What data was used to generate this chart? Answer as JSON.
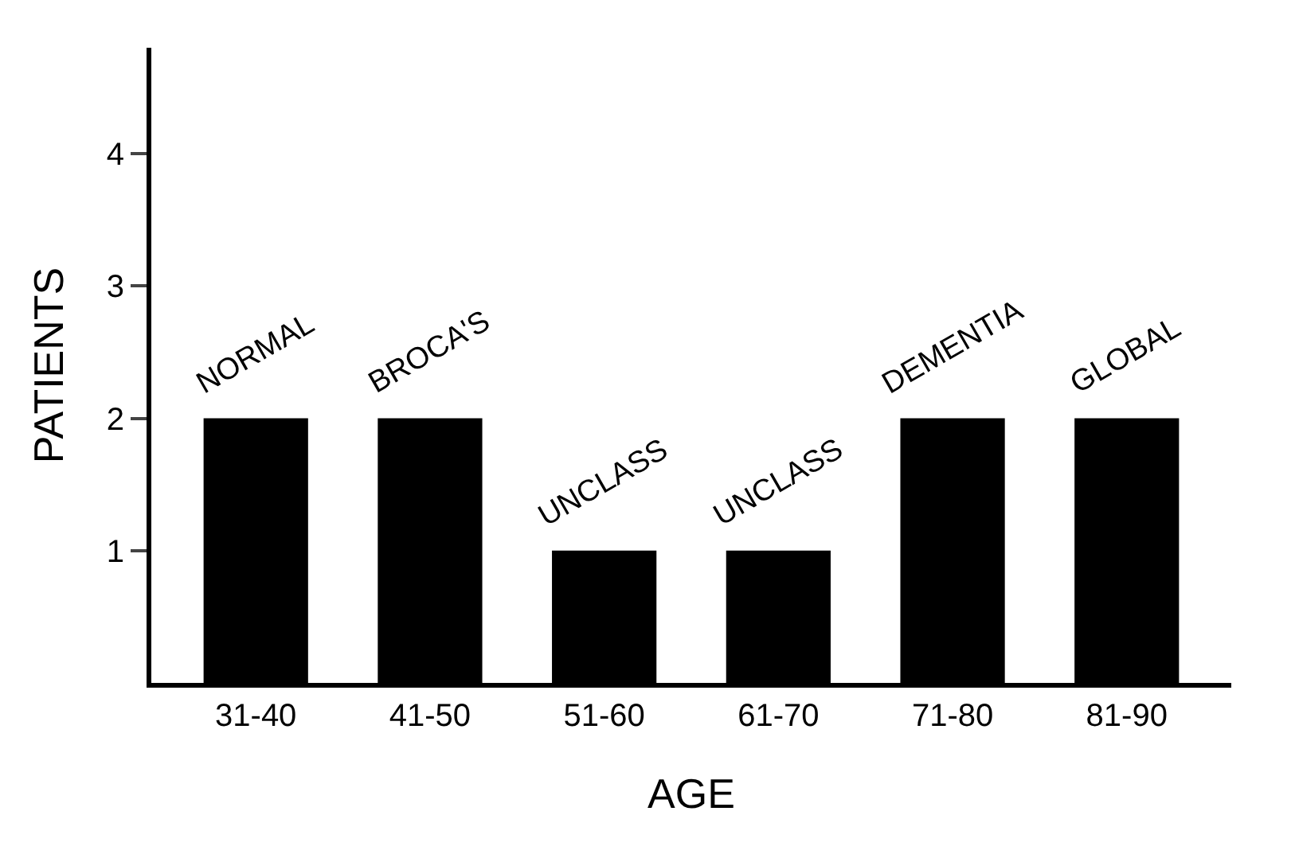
{
  "chart_data": {
    "type": "bar",
    "xlabel": "AGE",
    "ylabel": "PATIENTS",
    "categories": [
      "31-40",
      "41-50",
      "51-60",
      "61-70",
      "71-80",
      "81-90"
    ],
    "values": [
      2,
      2,
      1,
      1,
      2,
      2
    ],
    "color": "#000000",
    "ylim": [
      0,
      4.8
    ],
    "yticks": [
      1,
      2,
      3,
      4
    ],
    "grid": false,
    "legend": false,
    "annotations": [
      {
        "text": "NORMAL",
        "x": "31-40",
        "y": 2
      },
      {
        "text": "BROCA'S",
        "x": "41-50",
        "y": 2
      },
      {
        "text": "UNCLASS",
        "x": "51-60",
        "y": 1
      },
      {
        "text": "UNCLASS",
        "x": "61-70",
        "y": 1
      },
      {
        "text": "DEMENTIA",
        "x": "71-80",
        "y": 2
      },
      {
        "text": "GLOBAL",
        "x": "81-90",
        "y": 2
      }
    ]
  }
}
